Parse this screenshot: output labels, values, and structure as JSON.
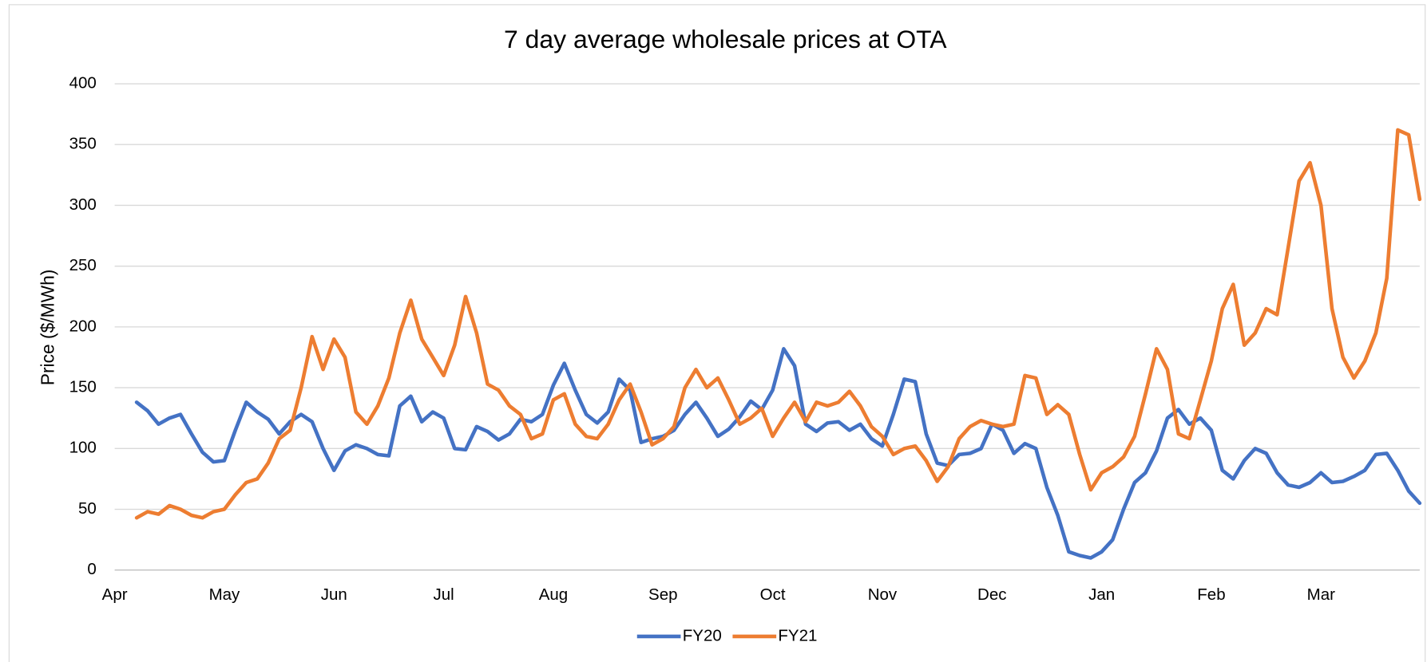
{
  "chart_data": {
    "type": "line",
    "title": "7 day average wholesale prices at OTA",
    "y_label": "Price ($/MWh)",
    "categories": [
      "Apr",
      null,
      null,
      null,
      null,
      null,
      null,
      null,
      null,
      null,
      "May",
      null,
      null,
      null,
      null,
      null,
      null,
      null,
      null,
      null,
      "Jun",
      null,
      null,
      null,
      null,
      null,
      null,
      null,
      null,
      null,
      "Jul",
      null,
      null,
      null,
      null,
      null,
      null,
      null,
      null,
      null,
      "Aug",
      null,
      null,
      null,
      null,
      null,
      null,
      null,
      null,
      null,
      "Sep",
      null,
      null,
      null,
      null,
      null,
      null,
      null,
      null,
      null,
      "Oct",
      null,
      null,
      null,
      null,
      null,
      null,
      null,
      null,
      null,
      "Nov",
      null,
      null,
      null,
      null,
      null,
      null,
      null,
      null,
      null,
      "Dec",
      null,
      null,
      null,
      null,
      null,
      null,
      null,
      null,
      null,
      "Jan",
      null,
      null,
      null,
      null,
      null,
      null,
      null,
      null,
      null,
      "Feb",
      null,
      null,
      null,
      null,
      null,
      null,
      null,
      null,
      null,
      "Mar",
      null,
      null,
      null,
      null,
      null,
      null,
      null,
      null,
      null
    ],
    "series": [
      {
        "name": "FY20",
        "color": "#4472c4",
        "values": [
          null,
          null,
          138,
          131,
          120,
          125,
          128,
          112,
          97,
          89,
          90,
          115,
          138,
          130,
          124,
          112,
          122,
          128,
          122,
          100,
          82,
          98,
          103,
          100,
          95,
          94,
          135,
          143,
          122,
          130,
          125,
          100,
          99,
          118,
          114,
          107,
          112,
          124,
          122,
          128,
          152,
          170,
          148,
          128,
          121,
          130,
          157,
          148,
          105,
          108,
          110,
          115,
          128,
          138,
          125,
          110,
          116,
          126,
          139,
          132,
          148,
          182,
          168,
          120,
          114,
          121,
          122,
          115,
          120,
          108,
          102,
          128,
          157,
          155,
          112,
          88,
          86,
          95,
          96,
          100,
          120,
          115,
          96,
          104,
          100,
          68,
          45,
          15,
          12,
          10,
          15,
          25,
          50,
          72,
          80,
          98,
          125,
          132,
          120,
          125,
          115,
          82,
          75,
          90,
          100,
          96,
          80,
          70,
          68,
          72,
          80,
          72,
          73,
          77,
          82,
          95,
          96,
          82,
          65,
          55
        ]
      },
      {
        "name": "FY21",
        "color": "#ed7d31",
        "values": [
          null,
          null,
          43,
          48,
          46,
          53,
          50,
          45,
          43,
          48,
          50,
          62,
          72,
          75,
          88,
          108,
          115,
          150,
          192,
          165,
          190,
          175,
          130,
          120,
          135,
          158,
          195,
          222,
          190,
          175,
          160,
          185,
          225,
          195,
          153,
          148,
          135,
          128,
          108,
          112,
          140,
          145,
          120,
          110,
          108,
          120,
          140,
          153,
          130,
          103,
          108,
          118,
          150,
          165,
          150,
          158,
          140,
          120,
          125,
          133,
          110,
          125,
          138,
          122,
          138,
          135,
          138,
          147,
          135,
          118,
          110,
          95,
          100,
          102,
          90,
          73,
          85,
          108,
          118,
          123,
          120,
          118,
          120,
          160,
          158,
          128,
          136,
          128,
          95,
          66,
          80,
          85,
          93,
          110,
          145,
          182,
          165,
          112,
          108,
          140,
          172,
          215,
          235,
          185,
          195,
          215,
          210,
          265,
          320,
          335,
          300,
          215,
          175,
          158,
          172,
          195,
          240,
          362,
          358,
          305
        ]
      }
    ],
    "ylim": [
      0,
      400
    ],
    "yticks": [
      0,
      50,
      100,
      150,
      200,
      250,
      300,
      350,
      400
    ],
    "grid": true,
    "legend": "bottom"
  }
}
